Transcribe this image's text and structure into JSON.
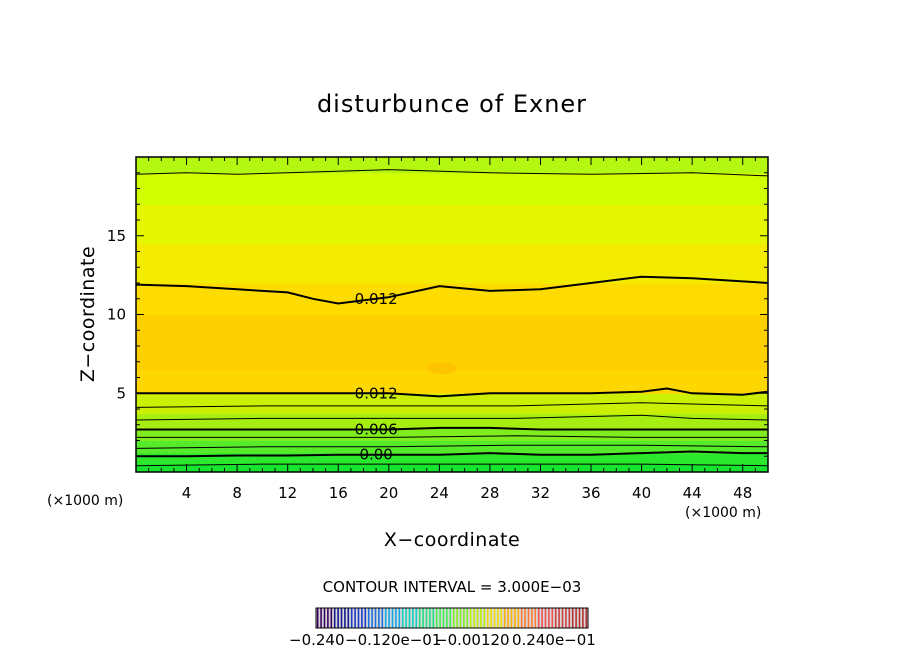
{
  "chart_data": {
    "type": "heatmap",
    "title": "disturbunce of Exner",
    "xlabel": "X−coordinate",
    "ylabel": "Z−coordinate",
    "xunit": "(×1000 m)",
    "yunit": "(×1000 m)",
    "xlim": [
      0,
      50
    ],
    "ylim": [
      0,
      20
    ],
    "xticks": [
      4,
      8,
      12,
      16,
      20,
      24,
      28,
      32,
      36,
      40,
      44,
      48
    ],
    "yticks": [
      5,
      10,
      15
    ],
    "contour_interval_text": "CONTOUR INTERVAL = 3.000E−03",
    "colorbar_labels": [
      "−0.240",
      "−0.120e−01",
      "−0.00120",
      "0.240e−01"
    ],
    "contours": [
      {
        "label": "0.00",
        "label_x": 19,
        "value": 0.0,
        "z": [
          [
            0,
            1.0
          ],
          [
            4,
            1.0
          ],
          [
            8,
            1.05
          ],
          [
            12,
            1.05
          ],
          [
            16,
            1.1
          ],
          [
            20,
            1.1
          ],
          [
            24,
            1.1
          ],
          [
            28,
            1.2
          ],
          [
            32,
            1.1
          ],
          [
            36,
            1.1
          ],
          [
            40,
            1.2
          ],
          [
            44,
            1.3
          ],
          [
            48,
            1.2
          ],
          [
            50,
            1.2
          ]
        ]
      },
      {
        "label": "0.006",
        "label_x": 19,
        "value": 0.006,
        "z": [
          [
            0,
            2.7
          ],
          [
            4,
            2.7
          ],
          [
            8,
            2.7
          ],
          [
            12,
            2.7
          ],
          [
            16,
            2.7
          ],
          [
            20,
            2.7
          ],
          [
            24,
            2.8
          ],
          [
            28,
            2.8
          ],
          [
            32,
            2.7
          ],
          [
            36,
            2.7
          ],
          [
            40,
            2.7
          ],
          [
            44,
            2.7
          ],
          [
            48,
            2.7
          ],
          [
            50,
            2.7
          ]
        ]
      },
      {
        "label": "0.012",
        "label_x": 19,
        "value": 0.012,
        "z": [
          [
            0,
            5.0
          ],
          [
            4,
            5.0
          ],
          [
            8,
            5.0
          ],
          [
            12,
            5.0
          ],
          [
            16,
            5.0
          ],
          [
            20,
            5.0
          ],
          [
            24,
            4.8
          ],
          [
            28,
            5.0
          ],
          [
            32,
            5.0
          ],
          [
            36,
            5.0
          ],
          [
            40,
            5.1
          ],
          [
            42,
            5.3
          ],
          [
            44,
            5.0
          ],
          [
            48,
            4.9
          ],
          [
            50,
            5.1
          ]
        ]
      },
      {
        "label": "0.012",
        "label_x": 19,
        "value": 0.012,
        "z": [
          [
            0,
            11.9
          ],
          [
            4,
            11.8
          ],
          [
            8,
            11.6
          ],
          [
            12,
            11.4
          ],
          [
            14,
            11.0
          ],
          [
            16,
            10.7
          ],
          [
            20,
            11.1
          ],
          [
            24,
            11.8
          ],
          [
            28,
            11.5
          ],
          [
            32,
            11.6
          ],
          [
            36,
            12.0
          ],
          [
            40,
            12.4
          ],
          [
            44,
            12.3
          ],
          [
            48,
            12.1
          ],
          [
            50,
            12.0
          ]
        ]
      }
    ],
    "thin_contours": [
      {
        "z": [
          [
            0,
            0.4
          ],
          [
            10,
            0.5
          ],
          [
            20,
            0.5
          ],
          [
            30,
            0.5
          ],
          [
            40,
            0.5
          ],
          [
            50,
            0.4
          ]
        ]
      },
      {
        "z": [
          [
            0,
            1.5
          ],
          [
            10,
            1.6
          ],
          [
            20,
            1.6
          ],
          [
            30,
            1.7
          ],
          [
            40,
            1.7
          ],
          [
            50,
            1.6
          ]
        ]
      },
      {
        "z": [
          [
            0,
            2.2
          ],
          [
            10,
            2.2
          ],
          [
            20,
            2.2
          ],
          [
            30,
            2.3
          ],
          [
            40,
            2.2
          ],
          [
            50,
            2.2
          ]
        ]
      },
      {
        "z": [
          [
            0,
            3.3
          ],
          [
            10,
            3.4
          ],
          [
            20,
            3.4
          ],
          [
            30,
            3.4
          ],
          [
            40,
            3.6
          ],
          [
            44,
            3.4
          ],
          [
            50,
            3.3
          ]
        ]
      },
      {
        "z": [
          [
            0,
            4.1
          ],
          [
            10,
            4.2
          ],
          [
            20,
            4.2
          ],
          [
            30,
            4.2
          ],
          [
            40,
            4.4
          ],
          [
            50,
            4.2
          ]
        ]
      },
      {
        "z": [
          [
            0,
            18.9
          ],
          [
            4,
            19.0
          ],
          [
            8,
            18.9
          ],
          [
            12,
            19.0
          ],
          [
            20,
            19.2
          ],
          [
            28,
            19.0
          ],
          [
            36,
            18.9
          ],
          [
            44,
            19.0
          ],
          [
            50,
            18.8
          ]
        ]
      }
    ],
    "color_bands": [
      {
        "z0": 0,
        "z1": 0.5,
        "color": "#16e52f"
      },
      {
        "z0": 0.5,
        "z1": 1.2,
        "color": "#2be82d"
      },
      {
        "z0": 1.2,
        "z1": 2.0,
        "color": "#55ea2a"
      },
      {
        "z0": 2.0,
        "z1": 2.8,
        "color": "#7eec1f"
      },
      {
        "z0": 2.8,
        "z1": 3.7,
        "color": "#a6ee12"
      },
      {
        "z0": 3.7,
        "z1": 5.0,
        "color": "#ccf005"
      },
      {
        "z0": 5.0,
        "z1": 6.5,
        "color": "#ffd700"
      },
      {
        "z0": 6.5,
        "z1": 10.0,
        "color": "#ffd000"
      },
      {
        "z0": 10.0,
        "z1": 12.0,
        "color": "#ffdc00"
      },
      {
        "z0": 12.0,
        "z1": 14.5,
        "color": "#f3ec00"
      },
      {
        "z0": 14.5,
        "z1": 17.0,
        "color": "#e4f700"
      },
      {
        "z0": 17.0,
        "z1": 19.0,
        "color": "#d2ff00"
      },
      {
        "z0": 19.0,
        "z1": 20.0,
        "color": "#b4f710"
      }
    ],
    "colorbar_colors": [
      "#3a0060",
      "#1a1a90",
      "#1a3ac8",
      "#1a70e0",
      "#10a8e8",
      "#10d0c0",
      "#20e080",
      "#40f050",
      "#80f020",
      "#c0f000",
      "#f0e000",
      "#ffb000",
      "#ff7a30",
      "#f05050",
      "#d04040",
      "#b83030"
    ],
    "grid": false
  }
}
